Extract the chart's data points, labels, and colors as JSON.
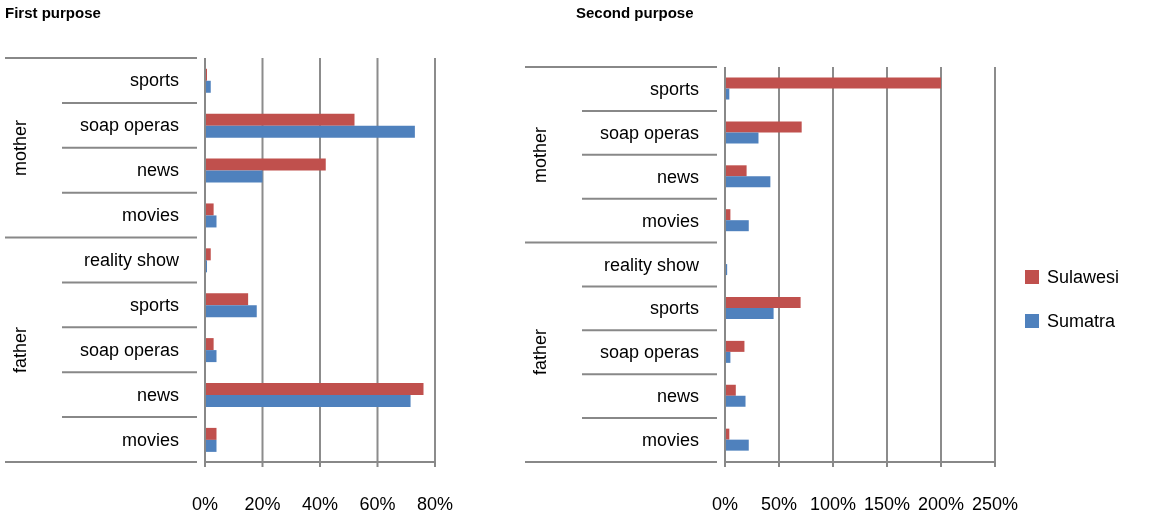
{
  "chart_data": [
    {
      "type": "bar",
      "orientation": "horizontal",
      "title": "First purpose",
      "categories": [
        "sports",
        "soap operas",
        "news",
        "movies",
        "reality show",
        "sports",
        "soap operas",
        "news",
        "movies"
      ],
      "annotations": [
        "mother",
        "father"
      ],
      "series": [
        {
          "color": "#c0504d",
          "values": [
            0.7,
            52,
            42,
            3,
            2,
            15,
            3,
            76,
            4
          ]
        },
        {
          "color": "#4f81bd",
          "values": [
            2,
            73,
            20,
            4,
            0.7,
            18,
            4,
            71.5,
            4
          ]
        }
      ],
      "xlim": [
        0,
        80
      ],
      "xticks": [
        {
          "value": 0,
          "label": "0%"
        },
        {
          "value": 20,
          "label": "20%"
        },
        {
          "value": 40,
          "label": "40%"
        },
        {
          "value": 60,
          "label": "60%"
        },
        {
          "value": 80,
          "label": "80%"
        }
      ],
      "grid": "x",
      "legend": false
    },
    {
      "type": "bar",
      "orientation": "horizontal",
      "title": "Second purpose",
      "categories": [
        "sports",
        "soap operas",
        "news",
        "movies",
        "reality show",
        "sports",
        "soap operas",
        "news",
        "movies"
      ],
      "annotations": [
        "mother",
        "father"
      ],
      "series": [
        {
          "name": "Sulawesi",
          "color": "#c0504d",
          "values": [
            200,
            71,
            20,
            5,
            0,
            70,
            18,
            10,
            4
          ]
        },
        {
          "name": "Sumatra",
          "color": "#4f81bd",
          "values": [
            4,
            31,
            42,
            22,
            2,
            45,
            5,
            19,
            22
          ]
        }
      ],
      "xlim": [
        0,
        250
      ],
      "xticks": [
        {
          "value": 0,
          "label": "0%"
        },
        {
          "value": 50,
          "label": "50%"
        },
        {
          "value": 100,
          "label": "100%"
        },
        {
          "value": 150,
          "label": "150%"
        },
        {
          "value": 200,
          "label": "200%"
        },
        {
          "value": 250,
          "label": "250%"
        }
      ],
      "grid": "x",
      "legend": "right"
    }
  ]
}
